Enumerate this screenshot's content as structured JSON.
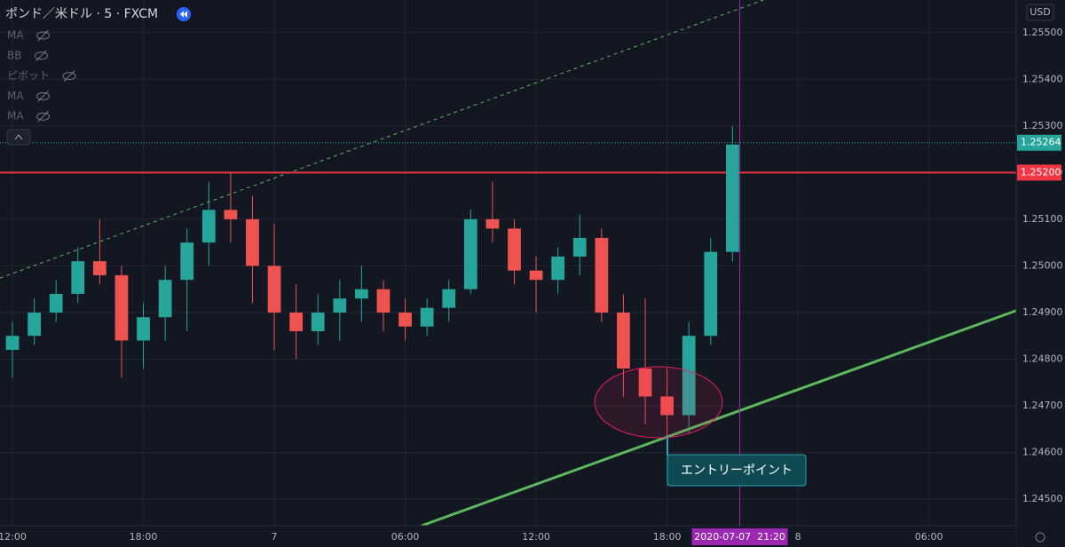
{
  "header": {
    "symbol": "ポンド／米ドル · 5 · FXCM",
    "indicators": [
      "MA",
      "BB",
      "ピボット",
      "MA",
      "MA"
    ],
    "currency": "USD"
  },
  "chart_data": {
    "type": "candlestick",
    "x": [
      12,
      13,
      14,
      15,
      16,
      17,
      18,
      19,
      20,
      21,
      22,
      23,
      24,
      25,
      26,
      27,
      28,
      29,
      30,
      31,
      32,
      33,
      34,
      35,
      36,
      37,
      38,
      39,
      40,
      41,
      42,
      43,
      44,
      45
    ],
    "open": [
      1.2482,
      1.2485,
      1.249,
      1.2494,
      1.2501,
      1.2498,
      1.2484,
      1.2489,
      1.2497,
      1.2505,
      1.2512,
      1.251,
      1.25,
      1.249,
      1.2486,
      1.249,
      1.2493,
      1.2495,
      1.249,
      1.2487,
      1.2491,
      1.2495,
      1.251,
      1.2508,
      1.2499,
      1.2497,
      1.2502,
      1.2506,
      1.249,
      1.2478,
      1.2472,
      1.2468,
      1.2485,
      1.2503
    ],
    "high": [
      1.2488,
      1.2493,
      1.2497,
      1.2504,
      1.251,
      1.25,
      1.2492,
      1.25,
      1.2508,
      1.2518,
      1.252,
      1.2515,
      1.2509,
      1.2496,
      1.2494,
      1.2497,
      1.25,
      1.2497,
      1.2493,
      1.2493,
      1.2497,
      1.2512,
      1.2518,
      1.251,
      1.2502,
      1.2504,
      1.2511,
      1.2508,
      1.2494,
      1.2493,
      1.2478,
      1.2488,
      1.2506,
      1.253
    ],
    "low": [
      1.2476,
      1.2483,
      1.2488,
      1.2492,
      1.2496,
      1.2476,
      1.2478,
      1.2484,
      1.2486,
      1.25,
      1.2505,
      1.2492,
      1.2482,
      1.248,
      1.2483,
      1.2484,
      1.2488,
      1.2486,
      1.2484,
      1.2485,
      1.2488,
      1.2494,
      1.2505,
      1.2496,
      1.249,
      1.2494,
      1.2498,
      1.2488,
      1.2472,
      1.2466,
      1.2463,
      1.2464,
      1.2483,
      1.2501
    ],
    "close": [
      1.2485,
      1.249,
      1.2494,
      1.2501,
      1.2498,
      1.2484,
      1.2489,
      1.2497,
      1.2505,
      1.2512,
      1.251,
      1.25,
      1.249,
      1.2486,
      1.249,
      1.2493,
      1.2495,
      1.249,
      1.2487,
      1.2491,
      1.2495,
      1.251,
      1.2508,
      1.2499,
      1.2497,
      1.2502,
      1.2506,
      1.249,
      1.2478,
      1.2472,
      1.2468,
      1.2485,
      1.2503,
      1.2526
    ],
    "up_color": "#26a69a",
    "down_color": "#ef5350",
    "xlim": [
      11.43,
      58.0
    ],
    "ylim": [
      1.24443,
      1.2557
    ],
    "xticks": [
      {
        "value": 12,
        "label": "12:00"
      },
      {
        "value": 18,
        "label": "18:00"
      },
      {
        "value": 24,
        "label": "7"
      },
      {
        "value": 30,
        "label": "06:00"
      },
      {
        "value": 36,
        "label": "12:00"
      },
      {
        "value": 42,
        "label": "18:00"
      },
      {
        "value": 48,
        "label": "8"
      },
      {
        "value": 54,
        "label": "06:00"
      }
    ],
    "yticks": [
      {
        "value": 1.245,
        "label": "1.24500"
      },
      {
        "value": 1.246,
        "label": "1.24600"
      },
      {
        "value": 1.247,
        "label": "1.24700"
      },
      {
        "value": 1.248,
        "label": "1.24800"
      },
      {
        "value": 1.249,
        "label": "1.24900"
      },
      {
        "value": 1.25,
        "label": "1.25000"
      },
      {
        "value": 1.251,
        "label": "1.25100"
      },
      {
        "value": 1.252,
        "label": "1.25200"
      },
      {
        "value": 1.253,
        "label": "1.25300"
      },
      {
        "value": 1.254,
        "label": "1.25400"
      },
      {
        "value": 1.255,
        "label": "1.25500"
      }
    ],
    "grid": true,
    "levels": [
      {
        "value": 1.25264,
        "label": "1.25264",
        "color": "#26a69a",
        "style": "dotted"
      },
      {
        "value": 1.252,
        "label": "1.25200",
        "color": "#f23645",
        "style": "solid"
      }
    ],
    "trendlines": [
      {
        "x": [
          30.75,
          58.0
        ],
        "y": [
          1.24443,
          1.24904
        ],
        "color": "#5cb85c",
        "style": "solid"
      },
      {
        "x": [
          11.43,
          46.41
        ],
        "y": [
          1.24974,
          1.2557
        ],
        "color": "#5cb85c",
        "style": "dashed"
      }
    ],
    "cursor": {
      "x": 45.333,
      "label": "2020-07-07  21:20",
      "color": "#9c27b0"
    },
    "annotation": "エントリーポイント"
  }
}
